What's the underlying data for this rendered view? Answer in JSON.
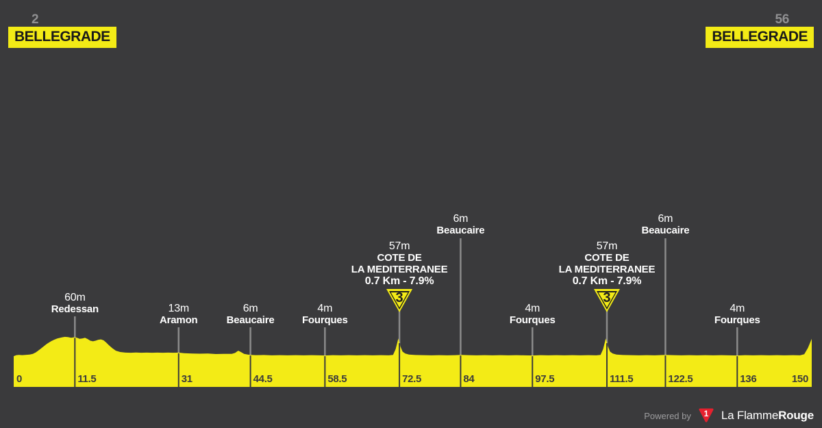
{
  "header": {
    "start_elevation": "2",
    "start_label": "BELLEGRADE",
    "end_elevation": "56",
    "end_label": "BELLEGRADE"
  },
  "footer": {
    "powered_by": "Powered by",
    "logo_badge": "1",
    "brand_name_regular": "La Flamme",
    "brand_name_bold": "Rouge"
  },
  "colors": {
    "background": "#3a3a3c",
    "profile_yellow": "#f3eb16",
    "text_white": "#ffffff",
    "text_gray": "#909092",
    "marker_line_gray": "#8b8b8b",
    "dark_on_yellow": "#3a3a3c",
    "brand_red": "#e6202e"
  },
  "chart_data": {
    "type": "area",
    "title": "Stage profile BELLEGRADE to BELLEGRADE",
    "x_unit": "km",
    "y_unit": "m",
    "x_range": [
      0,
      150
    ],
    "grid": false,
    "x_ticks": [
      0,
      11.5,
      31,
      44.5,
      58.5,
      72.5,
      84,
      97.5,
      111.5,
      122.5,
      136,
      150
    ],
    "start": {
      "name": "BELLEGRADE",
      "elevation_m": 2,
      "km": 0
    },
    "finish": {
      "name": "BELLEGRADE",
      "elevation_m": 56,
      "km": 150
    },
    "waypoints": [
      {
        "km": 11.5,
        "elevation": "60m",
        "name": "Redessan",
        "level": "mid",
        "type": "town"
      },
      {
        "km": 31,
        "elevation": "13m",
        "name": "Aramon",
        "level": "low",
        "type": "town"
      },
      {
        "km": 44.5,
        "elevation": "6m",
        "name": "Beaucaire",
        "level": "low",
        "type": "town"
      },
      {
        "km": 58.5,
        "elevation": "4m",
        "name": "Fourques",
        "level": "low",
        "type": "town"
      },
      {
        "km": 72.5,
        "elevation": "57m",
        "name_lines": [
          "COTE DE",
          "LA MEDITERRANEE"
        ],
        "gradient": "0.7 Km - 7.9%",
        "category": "3",
        "level": "climb",
        "type": "climb"
      },
      {
        "km": 84,
        "elevation": "6m",
        "name": "Beaucaire",
        "level": "high",
        "type": "town"
      },
      {
        "km": 97.5,
        "elevation": "4m",
        "name": "Fourques",
        "level": "low",
        "type": "town"
      },
      {
        "km": 111.5,
        "elevation": "57m",
        "name_lines": [
          "COTE DE",
          "LA MEDITERRANEE"
        ],
        "gradient": "0.7 Km - 7.9%",
        "category": "3",
        "level": "climb",
        "type": "climb"
      },
      {
        "km": 122.5,
        "elevation": "6m",
        "name": "Beaucaire",
        "level": "high",
        "type": "town"
      },
      {
        "km": 136,
        "elevation": "4m",
        "name": "Fourques",
        "level": "low",
        "type": "town"
      }
    ],
    "profile_km_elevation": [
      [
        0,
        2
      ],
      [
        0.5,
        5
      ],
      [
        1,
        6
      ],
      [
        1.6,
        5
      ],
      [
        2.2,
        6
      ],
      [
        3,
        7
      ],
      [
        3.6,
        9
      ],
      [
        4.2,
        14
      ],
      [
        5,
        24
      ],
      [
        5.6,
        32
      ],
      [
        6.2,
        40
      ],
      [
        7,
        48
      ],
      [
        7.6,
        53
      ],
      [
        8.2,
        57
      ],
      [
        9,
        60
      ],
      [
        9.6,
        62
      ],
      [
        10.2,
        61
      ],
      [
        10.8,
        59
      ],
      [
        11.2,
        60
      ],
      [
        11.5,
        61
      ],
      [
        11.9,
        59
      ],
      [
        12.4,
        56
      ],
      [
        12.9,
        57
      ],
      [
        13.4,
        59
      ],
      [
        13.9,
        55
      ],
      [
        14.4,
        50
      ],
      [
        14.9,
        48
      ],
      [
        15.4,
        50
      ],
      [
        15.9,
        53
      ],
      [
        16.4,
        54
      ],
      [
        16.9,
        51
      ],
      [
        17.4,
        44
      ],
      [
        17.9,
        36
      ],
      [
        18.5,
        27
      ],
      [
        19.2,
        19
      ],
      [
        20,
        15
      ],
      [
        21,
        13
      ],
      [
        22,
        12.5
      ],
      [
        23,
        13.5
      ],
      [
        24,
        12.5
      ],
      [
        25,
        13
      ],
      [
        26,
        12.5
      ],
      [
        27,
        13
      ],
      [
        28,
        12.5
      ],
      [
        29,
        13
      ],
      [
        30,
        12.5
      ],
      [
        31,
        13
      ],
      [
        32,
        11
      ],
      [
        33.5,
        10
      ],
      [
        35,
        9.5
      ],
      [
        36.5,
        10
      ],
      [
        38,
        8.5
      ],
      [
        39.5,
        9
      ],
      [
        41,
        9
      ],
      [
        41.6,
        12
      ],
      [
        42.2,
        19
      ],
      [
        42.7,
        15
      ],
      [
        43.3,
        9
      ],
      [
        44,
        7
      ],
      [
        44.5,
        6
      ],
      [
        45.5,
        5
      ],
      [
        47,
        5.5
      ],
      [
        48.5,
        4.5
      ],
      [
        50,
        5
      ],
      [
        51.5,
        4.5
      ],
      [
        53,
        5
      ],
      [
        54.5,
        4.5
      ],
      [
        56,
        5
      ],
      [
        57.5,
        4.5
      ],
      [
        58.5,
        4
      ],
      [
        60,
        5
      ],
      [
        61.5,
        4.5
      ],
      [
        63,
        5
      ],
      [
        64.5,
        4.5
      ],
      [
        66,
        5
      ],
      [
        67.5,
        4.5
      ],
      [
        69,
        5
      ],
      [
        70.5,
        4.5
      ],
      [
        71.3,
        6
      ],
      [
        71.8,
        24
      ],
      [
        72.3,
        57
      ],
      [
        72.7,
        32
      ],
      [
        73.1,
        16
      ],
      [
        73.6,
        10
      ],
      [
        74.3,
        7
      ],
      [
        75.5,
        5.5
      ],
      [
        77,
        5
      ],
      [
        78.5,
        4.5
      ],
      [
        80,
        5
      ],
      [
        81.5,
        4.5
      ],
      [
        83,
        5
      ],
      [
        84,
        6
      ],
      [
        85.5,
        5
      ],
      [
        87,
        4.5
      ],
      [
        88.5,
        5
      ],
      [
        90,
        4.5
      ],
      [
        91.5,
        5
      ],
      [
        93,
        4.5
      ],
      [
        94.5,
        5
      ],
      [
        96,
        4.5
      ],
      [
        97.5,
        4
      ],
      [
        99,
        5
      ],
      [
        100.5,
        4.5
      ],
      [
        102,
        5
      ],
      [
        103.5,
        4.5
      ],
      [
        105,
        5
      ],
      [
        106.5,
        4.5
      ],
      [
        108,
        5
      ],
      [
        109.5,
        4.5
      ],
      [
        110.3,
        6
      ],
      [
        110.8,
        24
      ],
      [
        111.3,
        57
      ],
      [
        111.7,
        32
      ],
      [
        112.1,
        16
      ],
      [
        112.6,
        10
      ],
      [
        113.3,
        7
      ],
      [
        114.5,
        5.5
      ],
      [
        116,
        5
      ],
      [
        117.5,
        4.5
      ],
      [
        119,
        5
      ],
      [
        120.5,
        4.5
      ],
      [
        122.5,
        6
      ],
      [
        124,
        5
      ],
      [
        125.5,
        4.5
      ],
      [
        127,
        5
      ],
      [
        128.5,
        4.5
      ],
      [
        130,
        5
      ],
      [
        131.5,
        4.5
      ],
      [
        133,
        5
      ],
      [
        134.5,
        4.5
      ],
      [
        136,
        4
      ],
      [
        137.5,
        5
      ],
      [
        139,
        4.5
      ],
      [
        140.5,
        5
      ],
      [
        142,
        4.5
      ],
      [
        143.5,
        5
      ],
      [
        145,
        4.5
      ],
      [
        146.5,
        5
      ],
      [
        147.8,
        4.5
      ],
      [
        148.6,
        8
      ],
      [
        149.3,
        28
      ],
      [
        150,
        56
      ]
    ]
  }
}
